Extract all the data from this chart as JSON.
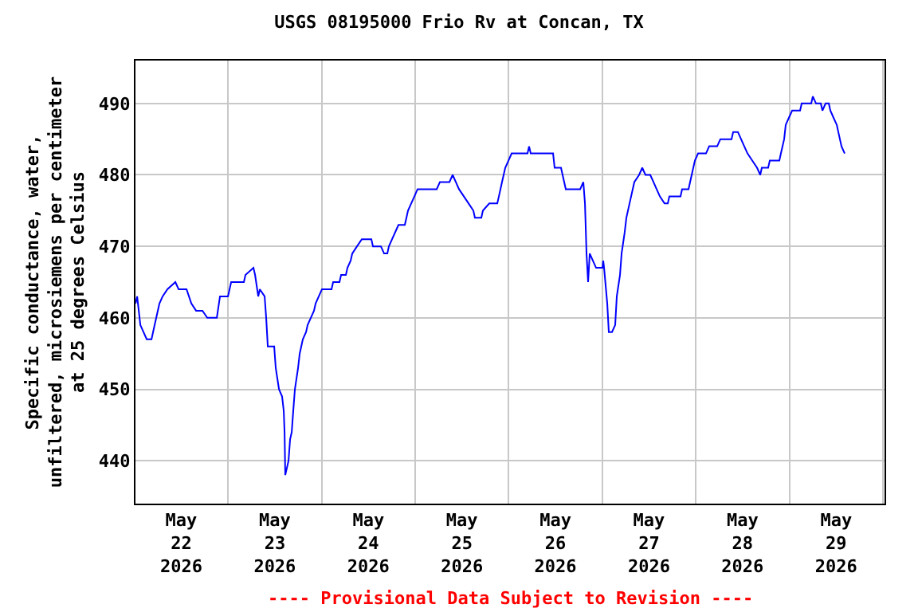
{
  "chart_data": {
    "type": "line",
    "title": "USGS 08195000 Frio Rv at Concan, TX",
    "ylabel": "Specific conductance, water,\nunfiltered, microsiemens per centimeter\nat 25 degrees Celsius",
    "annotations": [
      "---- Provisional Data Subject to Revision ----"
    ],
    "x": [
      "2026-05-21T12:16",
      "2026-05-21T12:41",
      "2026-05-21T13:30",
      "2026-05-21T15:08",
      "2026-05-21T16:22",
      "2026-05-21T17:10",
      "2026-05-21T17:35",
      "2026-05-21T18:24",
      "2026-05-21T19:13",
      "2026-05-21T20:27",
      "2026-05-21T22:29",
      "2026-05-21T23:19",
      "2026-05-22T01:21",
      "2026-05-22T02:35",
      "2026-05-22T03:48",
      "2026-05-22T05:26",
      "2026-05-22T06:40",
      "2026-05-22T09:07",
      "2026-05-22T09:56",
      "2026-05-22T11:59",
      "2026-05-22T12:48",
      "2026-05-22T16:04",
      "2026-05-22T16:28",
      "2026-05-22T18:31",
      "2026-05-22T18:56",
      "2026-05-22T19:45",
      "2026-05-22T20:09",
      "2026-05-22T21:23",
      "2026-05-22T21:47",
      "2026-05-22T22:12",
      "2026-05-22T23:50",
      "2026-05-23T00:14",
      "2026-05-23T01:04",
      "2026-05-23T01:52",
      "2026-05-23T02:17",
      "2026-05-23T02:30",
      "2026-05-23T02:41",
      "2026-05-23T03:31",
      "2026-05-23T03:55",
      "2026-05-23T04:20",
      "2026-05-23T04:44",
      "2026-05-23T05:09",
      "2026-05-23T05:58",
      "2026-05-23T06:23",
      "2026-05-23T07:11",
      "2026-05-23T08:01",
      "2026-05-23T08:25",
      "2026-05-23T09:14",
      "2026-05-23T10:03",
      "2026-05-23T10:28",
      "2026-05-23T11:17",
      "2026-05-23T12:06",
      "2026-05-23T14:33",
      "2026-05-23T14:58",
      "2026-05-23T16:35",
      "2026-05-23T17:00",
      "2026-05-23T18:14",
      "2026-05-23T18:38",
      "2026-05-23T19:27",
      "2026-05-23T19:52",
      "2026-05-23T21:05",
      "2026-05-23T22:19",
      "2026-05-24T00:46",
      "2026-05-24T01:11",
      "2026-05-24T03:13",
      "2026-05-24T04:02",
      "2026-05-24T04:52",
      "2026-05-24T05:16",
      "2026-05-24T06:05",
      "2026-05-24T06:54",
      "2026-05-24T07:43",
      "2026-05-24T09:21",
      "2026-05-24T09:46",
      "2026-05-24T10:10",
      "2026-05-24T10:59",
      "2026-05-24T11:49",
      "2026-05-24T12:37",
      "2026-05-24T17:32",
      "2026-05-24T18:21",
      "2026-05-24T20:48",
      "2026-05-24T21:37",
      "2026-05-24T22:26",
      "2026-05-24T23:15",
      "2026-05-25T00:29",
      "2026-05-25T01:43",
      "2026-05-25T02:56",
      "2026-05-25T03:20",
      "2026-05-25T04:59",
      "2026-05-25T05:23",
      "2026-05-25T07:01",
      "2026-05-25T09:04",
      "2026-05-25T09:29",
      "2026-05-25T10:17",
      "2026-05-25T11:07",
      "2026-05-25T11:56",
      "2026-05-25T12:45",
      "2026-05-25T16:50",
      "2026-05-25T17:14",
      "2026-05-25T17:39",
      "2026-05-25T23:23",
      "2026-05-25T23:47",
      "2026-05-26T01:25",
      "2026-05-26T02:14",
      "2026-05-26T02:39",
      "2026-05-26T06:20",
      "2026-05-26T07:09",
      "2026-05-26T07:34",
      "2026-05-26T07:58",
      "2026-05-26T08:22",
      "2026-05-26T08:47",
      "2026-05-26T09:36",
      "2026-05-26T10:25",
      "2026-05-26T12:03",
      "2026-05-26T12:15",
      "2026-05-26T12:28",
      "2026-05-26T13:17",
      "2026-05-26T13:41",
      "2026-05-26T14:30",
      "2026-05-26T15:19",
      "2026-05-26T15:44",
      "2026-05-26T16:33",
      "2026-05-26T16:58",
      "2026-05-26T17:46",
      "2026-05-26T18:11",
      "2026-05-26T19:00",
      "2026-05-26T19:49",
      "2026-05-26T20:14",
      "2026-05-26T21:27",
      "2026-05-26T22:16",
      "2026-05-26T23:05",
      "2026-05-27T00:19",
      "2026-05-27T01:08",
      "2026-05-27T01:57",
      "2026-05-27T02:46",
      "2026-05-27T03:59",
      "2026-05-27T04:49",
      "2026-05-27T05:13",
      "2026-05-27T08:05",
      "2026-05-27T08:29",
      "2026-05-27T10:08",
      "2026-05-27T10:32",
      "2026-05-27T11:46",
      "2026-05-27T12:35",
      "2026-05-27T14:37",
      "2026-05-27T15:26",
      "2026-05-27T17:29",
      "2026-05-27T18:18",
      "2026-05-27T21:10",
      "2026-05-27T21:35",
      "2026-05-27T22:48",
      "2026-05-27T23:37",
      "2026-05-28T00:26",
      "2026-05-28T01:16",
      "2026-05-28T02:29",
      "2026-05-28T03:43",
      "2026-05-28T04:32",
      "2026-05-28T04:56",
      "2026-05-28T06:34",
      "2026-05-28T06:59",
      "2026-05-28T09:26",
      "2026-05-28T09:50",
      "2026-05-28T10:40",
      "2026-05-28T11:04",
      "2026-05-28T11:53",
      "2026-05-28T12:43",
      "2026-05-28T14:45",
      "2026-05-28T15:10",
      "2026-05-28T17:37",
      "2026-05-28T18:01",
      "2026-05-28T18:50",
      "2026-05-28T20:04",
      "2026-05-28T20:29",
      "2026-05-28T21:18",
      "2026-05-28T22:07",
      "2026-05-28T22:31",
      "2026-05-28T23:20",
      "2026-05-29T00:10",
      "2026-05-29T00:58",
      "2026-05-29T01:23",
      "2026-05-29T02:12"
    ],
    "series": [
      {
        "color": "#0000ff",
        "values": [
          462,
          463,
          459,
          457,
          457,
          459,
          460,
          462,
          463,
          464,
          465,
          464,
          464,
          462,
          461,
          461,
          460,
          460,
          463,
          463,
          465,
          465,
          466,
          467,
          466,
          463,
          464,
          463,
          460,
          456,
          456,
          453,
          450,
          449,
          447,
          444,
          438,
          440,
          443,
          444,
          447,
          450,
          453,
          455,
          457,
          458,
          459,
          460,
          461,
          462,
          463,
          464,
          464,
          465,
          465,
          466,
          466,
          467,
          468,
          469,
          470,
          471,
          471,
          470,
          470,
          469,
          469,
          470,
          471,
          472,
          473,
          473,
          474,
          475,
          476,
          477,
          478,
          478,
          479,
          479,
          480,
          479,
          478,
          477,
          476,
          475,
          474,
          474,
          475,
          476,
          476,
          477,
          479,
          481,
          482,
          483,
          483,
          484,
          483,
          483,
          481,
          481,
          479,
          478,
          478,
          479,
          476,
          469,
          465,
          469,
          468,
          467,
          467,
          468,
          467,
          462,
          458,
          458,
          459,
          463,
          466,
          469,
          472,
          474,
          476,
          478,
          479,
          480,
          481,
          480,
          480,
          479,
          478,
          477,
          476,
          476,
          477,
          477,
          478,
          478,
          479,
          482,
          483,
          483,
          484,
          484,
          485,
          485,
          486,
          486,
          485,
          484,
          483,
          482,
          481,
          480,
          481,
          481,
          482,
          482,
          483,
          485,
          487,
          488,
          489,
          489,
          490,
          490,
          491,
          490,
          490,
          489,
          490,
          490,
          489,
          488,
          487,
          485,
          484,
          483
        ]
      }
    ],
    "xlim": [
      "2026-05-21T12:15",
      "2026-05-29T12:25"
    ],
    "xticks": [
      {
        "value": "2026-05-22",
        "label": "May\n22\n2026"
      },
      {
        "value": "2026-05-23",
        "label": "May\n23\n2026"
      },
      {
        "value": "2026-05-24",
        "label": "May\n24\n2026"
      },
      {
        "value": "2026-05-25",
        "label": "May\n25\n2026"
      },
      {
        "value": "2026-05-26",
        "label": "May\n26\n2026"
      },
      {
        "value": "2026-05-27",
        "label": "May\n27\n2026"
      },
      {
        "value": "2026-05-28",
        "label": "May\n28\n2026"
      },
      {
        "value": "2026-05-29",
        "label": "May\n29\n2026"
      }
    ],
    "ylim": [
      434,
      496
    ],
    "yticks": [
      440,
      450,
      460,
      470,
      480,
      490
    ],
    "grid": true,
    "legend": false,
    "marker": "none",
    "line_style": "solid"
  }
}
